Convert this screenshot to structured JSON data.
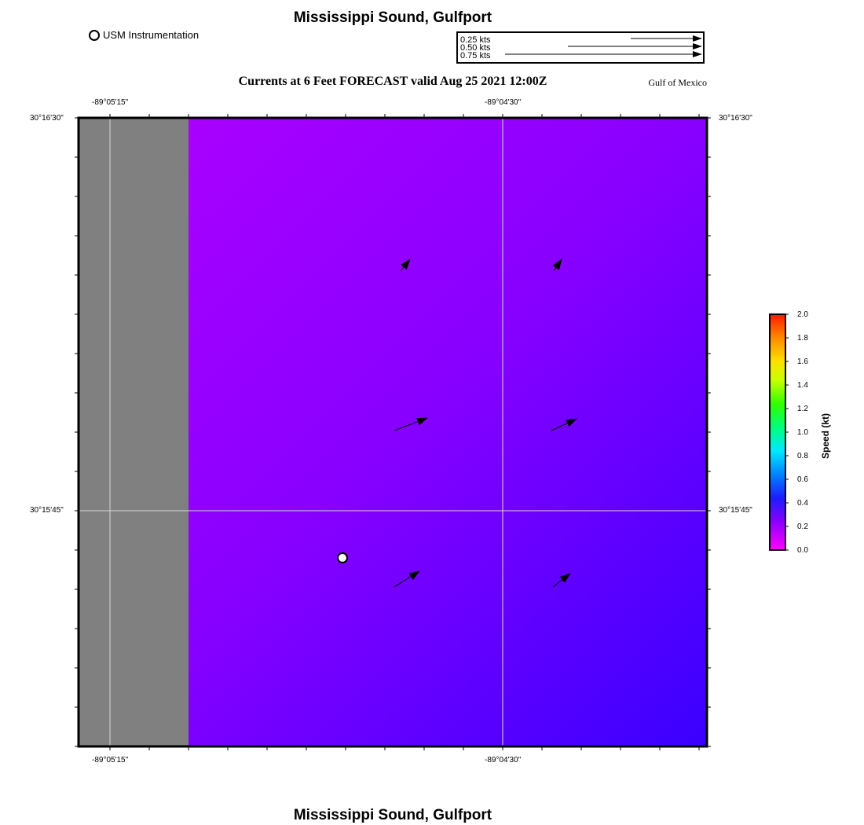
{
  "title": "Mississippi Sound, Gulfport",
  "bottom_title": "Mississippi Sound, Gulfport",
  "legend": {
    "instrument_label": "USM Instrumentation"
  },
  "subtitle": "Currents at 6 Feet FORECAST valid Aug 25 2021 12:00Z",
  "region_label": "Gulf of Mexico",
  "vector_scale": [
    {
      "label": "0.25 kts",
      "speed_kts": 0.25
    },
    {
      "label": "0.50 kts",
      "speed_kts": 0.5
    },
    {
      "label": "0.75 kts",
      "speed_kts": 0.75
    }
  ],
  "axes": {
    "top_ticks": [
      "-89°05'15\"",
      "-89°04'30\""
    ],
    "bottom_ticks": [
      "-89°05'15\"",
      "-89°04'30\""
    ],
    "left_ticks": [
      "30°16'30\"",
      "30°15'45\""
    ],
    "right_ticks": [
      "30°16'30\"",
      "30°15'45\""
    ]
  },
  "colorbar": {
    "title": "Speed (kt)",
    "ticks": [
      "2.0",
      "1.8",
      "1.6",
      "1.4",
      "1.2",
      "1.0",
      "0.8",
      "0.6",
      "0.4",
      "0.2",
      "0.0"
    ],
    "range": [
      0.0,
      2.0
    ]
  },
  "colors": {
    "land": "#808080",
    "water_low": "#b000ff",
    "water_high": "#3a00ff",
    "grid": "#d8d8d8"
  }
}
